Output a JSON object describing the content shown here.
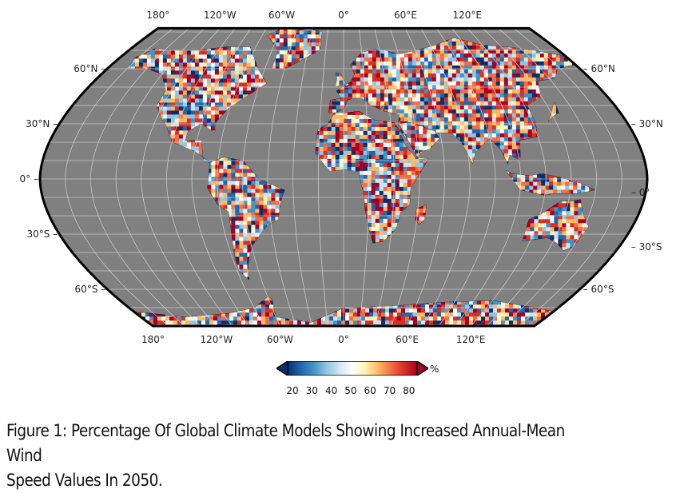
{
  "map": {
    "projection": "robinson",
    "ocean_color": "#808080",
    "graticule_color": "#d9d9d9",
    "top_lon_labels": [
      "180°",
      "120°W",
      "60°W",
      "0°",
      "60°E",
      "120°E"
    ],
    "bottom_lon_labels": [
      "180°",
      "120°W",
      "60°W",
      "0°",
      "60°E",
      "120°E"
    ],
    "left_lat_labels": [
      "60°N",
      "30°N",
      "0°",
      "30°S",
      "60°S"
    ],
    "right_lat_labels": [
      "60°N",
      "30°N",
      "0°",
      "30°S",
      "60°S"
    ],
    "left_lat_labels_display": [
      "60°N –",
      "30°N –",
      "0° –",
      "30°S –",
      "60°S –"
    ],
    "right_lat_labels_display": [
      "– 60°N",
      "– 30°N",
      "– 0°",
      "– 30°S",
      "– 60°S"
    ]
  },
  "colorbar": {
    "ticks": [
      "20",
      "30",
      "40",
      "50",
      "60",
      "70",
      "80"
    ],
    "unit": "%",
    "colors": [
      "#08306b",
      "#2166ac",
      "#4393c3",
      "#92c5de",
      "#d1e5f0",
      "#ffffff",
      "#fff3b0",
      "#fdb863",
      "#f46d43",
      "#d73027",
      "#a50026"
    ]
  },
  "caption": {
    "line1": "Figure 1: Percentage Of Global Climate Models Showing Increased Annual-Mean Wind",
    "line2": "Speed Values In 2050."
  }
}
